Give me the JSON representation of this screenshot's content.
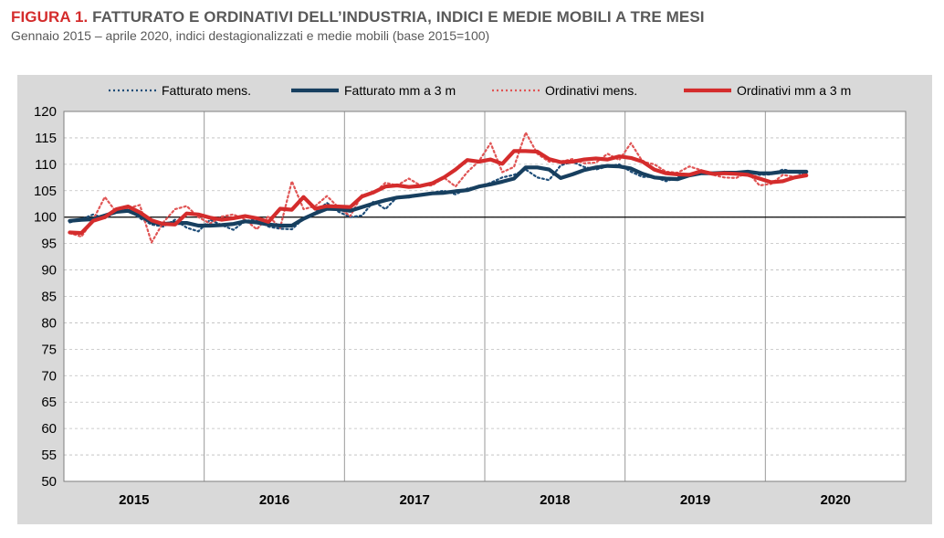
{
  "figure": {
    "label": "FIGURA 1.",
    "title": "FATTURATO E ORDINATIVI DELL’INDUSTRIA, INDICI E MEDIE MOBILI A TRE MESI",
    "subtitle": "Gennaio 2015 – aprile 2020, indici destagionalizzati e medie mobili (base 2015=100)"
  },
  "chart_data": {
    "type": "line",
    "x": [
      "2015-01",
      "2015-02",
      "2015-03",
      "2015-04",
      "2015-05",
      "2015-06",
      "2015-07",
      "2015-08",
      "2015-09",
      "2015-10",
      "2015-11",
      "2015-12",
      "2016-01",
      "2016-02",
      "2016-03",
      "2016-04",
      "2016-05",
      "2016-06",
      "2016-07",
      "2016-08",
      "2016-09",
      "2016-10",
      "2016-11",
      "2016-12",
      "2017-01",
      "2017-02",
      "2017-03",
      "2017-04",
      "2017-05",
      "2017-06",
      "2017-07",
      "2017-08",
      "2017-09",
      "2017-10",
      "2017-11",
      "2017-12",
      "2018-01",
      "2018-02",
      "2018-03",
      "2018-04",
      "2018-05",
      "2018-06",
      "2018-07",
      "2018-08",
      "2018-09",
      "2018-10",
      "2018-11",
      "2018-12",
      "2019-01",
      "2019-02",
      "2019-03",
      "2019-04",
      "2019-05",
      "2019-06",
      "2019-07",
      "2019-08",
      "2019-09",
      "2019-10",
      "2019-11",
      "2019-12",
      "2020-01",
      "2020-02",
      "2020-03",
      "2020-04"
    ],
    "x_tick_labels": [
      "2015",
      "2016",
      "2017",
      "2018",
      "2019",
      "2020"
    ],
    "ylim": [
      50,
      120
    ],
    "y_ticks": [
      50,
      55,
      60,
      65,
      70,
      75,
      80,
      85,
      90,
      95,
      100,
      105,
      110,
      115,
      120
    ],
    "reference_line": 100,
    "grid": true,
    "legend_position": "top",
    "series": [
      {
        "name": "Fatturato mens.",
        "style": "dotted",
        "color": "#1f4e79",
        "values": [
          99.0,
          99.6,
          100.5,
          99.8,
          101.0,
          101.5,
          99.8,
          98.6,
          98.2,
          99.5,
          98.0,
          97.3,
          99.5,
          98.5,
          97.6,
          99.3,
          99.5,
          98.2,
          97.8,
          97.7,
          99.7,
          100.9,
          102.7,
          101.0,
          100.0,
          100.3,
          103.0,
          101.5,
          103.8,
          103.7,
          104.2,
          104.6,
          105.0,
          104.3,
          105.4,
          105.8,
          106.5,
          107.5,
          108.0,
          109.0,
          107.5,
          107.0,
          109.8,
          110.5,
          109.5,
          109.0,
          109.6,
          110.0,
          108.6,
          107.6,
          107.6,
          106.8,
          107.5,
          108.2,
          108.5,
          108.1,
          108.6,
          108.2,
          108.6,
          108.0,
          108.1,
          109.0,
          108.6,
          107.9
        ]
      },
      {
        "name": "Fatturato mm a 3 m",
        "style": "solid",
        "color": "#173f5f",
        "values": [
          99.3,
          99.5,
          99.6,
          100.3,
          101.0,
          101.2,
          100.3,
          99.0,
          98.7,
          98.9,
          98.9,
          98.4,
          98.4,
          98.5,
          98.7,
          99.2,
          99.0,
          98.6,
          98.4,
          98.4,
          99.7,
          100.7,
          101.6,
          101.5,
          101.2,
          101.9,
          102.6,
          103.2,
          103.7,
          103.9,
          104.2,
          104.5,
          104.6,
          104.9,
          105.1,
          105.8,
          106.2,
          106.7,
          107.3,
          109.4,
          109.4,
          109.0,
          107.4,
          108.1,
          108.9,
          109.4,
          109.7,
          109.6,
          109.2,
          108.2,
          107.5,
          107.3,
          107.2,
          107.9,
          108.3,
          108.3,
          108.4,
          108.4,
          108.6,
          108.3,
          108.3,
          108.6,
          108.6,
          108.6
        ]
      },
      {
        "name": "Ordinativi mens.",
        "style": "dotted",
        "color": "#e05555",
        "values": [
          97.0,
          96.3,
          99.5,
          103.8,
          100.9,
          101.7,
          102.3,
          95.2,
          99.0,
          101.5,
          102.1,
          100.0,
          98.8,
          100.1,
          100.5,
          99.5,
          97.7,
          100.2,
          98.0,
          106.8,
          101.5,
          102.1,
          104.0,
          101.8,
          100.2,
          104.2,
          104.5,
          106.5,
          106.0,
          107.3,
          106.0,
          106.0,
          107.5,
          105.8,
          108.5,
          110.6,
          114.0,
          108.5,
          109.5,
          116.0,
          112.0,
          110.5,
          110.5,
          111.0,
          110.2,
          110.3,
          112.0,
          110.8,
          114.0,
          110.5,
          110.0,
          108.6,
          108.4,
          109.6,
          108.9,
          108.0,
          107.5,
          107.4,
          108.5,
          106.0,
          106.3,
          108.0,
          107.6,
          108.2
        ]
      },
      {
        "name": "Ordinativi mm a 3 m",
        "style": "solid",
        "color": "#d42c2c",
        "values": [
          97.1,
          97.0,
          99.3,
          100.0,
          101.5,
          102.0,
          100.9,
          99.4,
          98.7,
          98.6,
          100.7,
          100.5,
          99.9,
          99.5,
          99.8,
          100.2,
          99.8,
          99.1,
          101.6,
          101.4,
          103.8,
          101.6,
          102.1,
          102.0,
          101.9,
          103.9,
          104.7,
          105.8,
          106.0,
          105.7,
          105.9,
          106.4,
          107.5,
          109.0,
          110.8,
          110.5,
          110.9,
          110.1,
          112.5,
          112.5,
          112.4,
          111.0,
          110.4,
          110.5,
          110.9,
          111.1,
          110.9,
          111.5,
          111.2,
          110.5,
          109.0,
          108.3,
          108.1,
          108.0,
          108.7,
          108.2,
          108.3,
          108.2,
          108.0,
          107.3,
          106.6,
          106.8,
          107.5,
          107.9
        ]
      }
    ]
  }
}
